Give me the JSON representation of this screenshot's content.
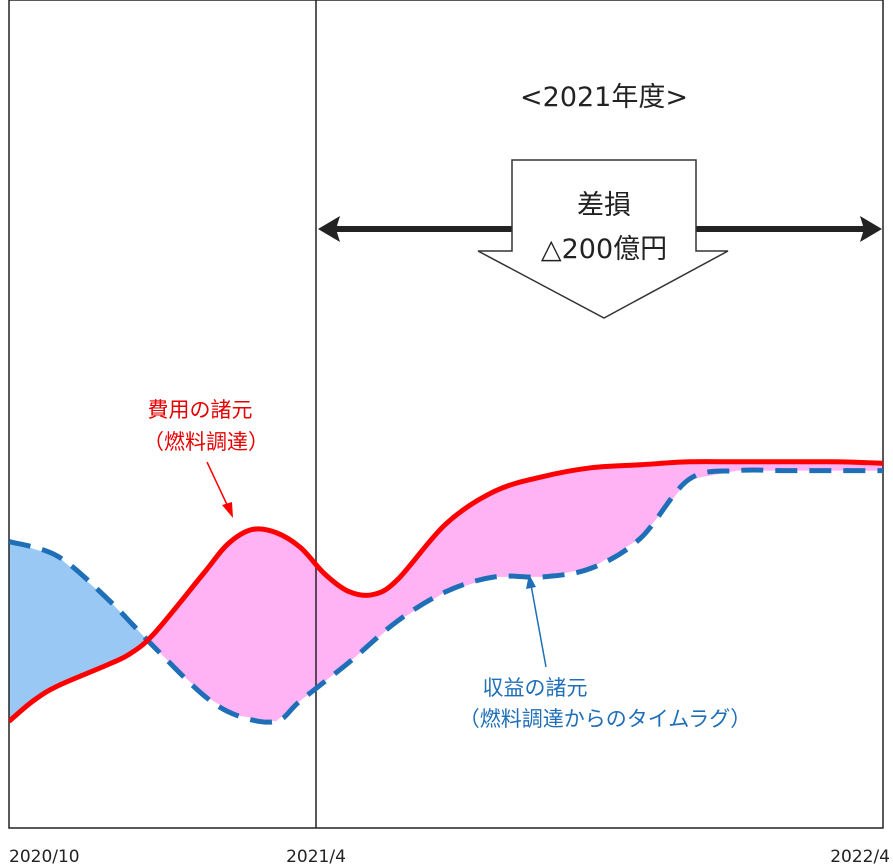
{
  "chart_data": {
    "type": "line",
    "x_ticks": [
      "2020/10",
      "2021/4",
      "2022/4"
    ],
    "period_label": "<2021年度>",
    "loss_label": [
      "差損",
      "△200億円"
    ],
    "series": [
      {
        "name": "費用の諸元",
        "sub": "（燃料調達）",
        "style": "solid",
        "color": "#ff0000",
        "points": [
          [
            0,
            0.08
          ],
          [
            0.5,
            0.15
          ],
          [
            1,
            0.2
          ],
          [
            2,
            0.27
          ],
          [
            2.5,
            0.31
          ],
          [
            3,
            0.38
          ],
          [
            4,
            0.58
          ],
          [
            4.5,
            0.68
          ],
          [
            5,
            0.73
          ],
          [
            5.5,
            0.72
          ],
          [
            6,
            0.67
          ],
          [
            6.5,
            0.58
          ],
          [
            7,
            0.52
          ],
          [
            7.5,
            0.51
          ],
          [
            8,
            0.56
          ],
          [
            9,
            0.75
          ],
          [
            10,
            0.86
          ],
          [
            11,
            0.91
          ],
          [
            12,
            0.94
          ],
          [
            13,
            0.95
          ],
          [
            14,
            0.96
          ],
          [
            15,
            0.96
          ],
          [
            16,
            0.96
          ],
          [
            17,
            0.96
          ],
          [
            18,
            0.955
          ]
        ]
      },
      {
        "name": "収益の諸元",
        "sub": "（燃料調達からのタイムラグ）",
        "style": "dashed",
        "color": "#1f6fb8",
        "points": [
          [
            0,
            0.69
          ],
          [
            1,
            0.64
          ],
          [
            2,
            0.5
          ],
          [
            3,
            0.33
          ],
          [
            4,
            0.17
          ],
          [
            4.7,
            0.1
          ],
          [
            5.5,
            0.08
          ],
          [
            6,
            0.15
          ],
          [
            7,
            0.28
          ],
          [
            8,
            0.42
          ],
          [
            9,
            0.52
          ],
          [
            10,
            0.57
          ],
          [
            11,
            0.57
          ],
          [
            12,
            0.6
          ],
          [
            13,
            0.7
          ],
          [
            14,
            0.9
          ],
          [
            15,
            0.93
          ],
          [
            16,
            0.93
          ],
          [
            17,
            0.93
          ],
          [
            18,
            0.93
          ]
        ]
      }
    ],
    "colors": {
      "cost_line": "#ff0000",
      "revenue_line": "#1f6fb8",
      "gap_fill": "#ffb3f5",
      "excess_fill": "#99c8f4"
    }
  }
}
